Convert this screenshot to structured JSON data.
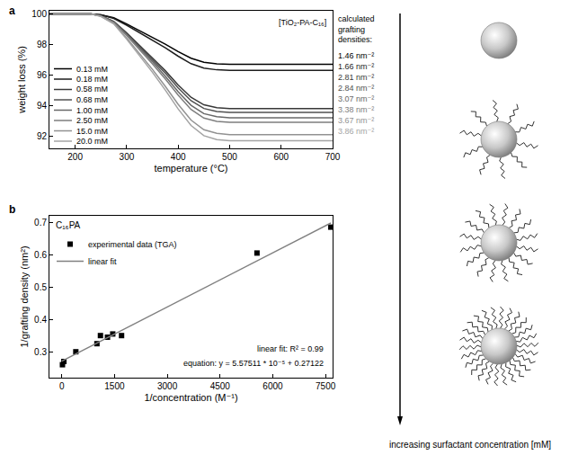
{
  "chart_data": [
    {
      "type": "line",
      "panel_label": "a",
      "inset_label": "[TiO₂-PA-C₁₆]",
      "side_heading": "calculated grafting densities:",
      "x_label": "temperature (°C)",
      "y_label": "weight loss (%)",
      "xlim": [
        150,
        700
      ],
      "xticks": [
        200,
        300,
        400,
        500,
        600,
        700
      ],
      "ylim": [
        91.2,
        100.2
      ],
      "yticks": [
        92,
        94,
        96,
        98,
        100
      ],
      "grid": false,
      "legend": "lower left",
      "x": [
        150,
        200,
        230,
        250,
        275,
        300,
        325,
        350,
        375,
        400,
        425,
        450,
        475,
        500,
        550,
        600,
        650,
        700
      ],
      "series": [
        {
          "name": "0.13 mM",
          "color": "#000000",
          "end_label": "1.46 nm⁻²",
          "values": [
            100,
            100,
            100,
            99.93,
            99.74,
            99.34,
            98.91,
            98.48,
            98.02,
            97.53,
            97.1,
            96.83,
            96.73,
            96.7,
            96.7,
            96.7,
            96.7,
            96.7
          ]
        },
        {
          "name": "0.18 mM",
          "color": "#1e1e1e",
          "end_label": "1.66 nm⁻²",
          "values": [
            100,
            100,
            100,
            99.93,
            99.7,
            99.26,
            98.78,
            98.3,
            97.78,
            97.23,
            96.74,
            96.45,
            96.34,
            96.3,
            96.3,
            96.3,
            96.3,
            96.3
          ]
        },
        {
          "name": "0.58 mM",
          "color": "#383838",
          "end_label": "2.81 nm⁻²",
          "values": [
            100,
            100,
            100,
            99.88,
            99.5,
            98.76,
            97.95,
            97.15,
            96.28,
            95.35,
            94.54,
            94.05,
            93.86,
            93.8,
            93.8,
            93.8,
            93.8,
            93.8
          ]
        },
        {
          "name": "0.68 mM",
          "color": "#505050",
          "end_label": "2.84 nm⁻²",
          "values": [
            100,
            100,
            100,
            99.87,
            99.48,
            98.71,
            97.87,
            97.03,
            96.13,
            95.16,
            94.32,
            93.81,
            93.61,
            93.55,
            93.55,
            93.55,
            93.55,
            93.55
          ]
        },
        {
          "name": "1.00 mM",
          "color": "#686868",
          "end_label": "3.07 nm⁻²",
          "values": [
            100,
            100,
            100,
            99.86,
            99.46,
            98.64,
            97.76,
            96.87,
            95.92,
            94.9,
            94.02,
            93.47,
            93.27,
            93.2,
            93.2,
            93.2,
            93.2,
            93.2
          ]
        },
        {
          "name": "2.50 mM",
          "color": "#7e7e7e",
          "end_label": "3.38 nm⁻²",
          "values": [
            100,
            100,
            100,
            99.86,
            99.43,
            98.58,
            97.66,
            96.73,
            95.74,
            94.68,
            93.75,
            93.18,
            92.97,
            92.9,
            92.9,
            92.9,
            92.9,
            92.9
          ]
        },
        {
          "name": "15.0 mM",
          "color": "#929292",
          "end_label": "3.67 nm⁻²",
          "values": [
            100,
            100,
            100,
            99.84,
            99.37,
            98.42,
            97.39,
            96.37,
            95.26,
            94.08,
            93.05,
            92.42,
            92.18,
            92.1,
            92.1,
            92.1,
            92.1,
            92.1
          ]
        },
        {
          "name": "20.0 mM",
          "color": "#a4a4a4",
          "end_label": "3.86 nm⁻²",
          "values": [
            100,
            100,
            100,
            99.83,
            99.34,
            98.34,
            97.26,
            96.18,
            95.02,
            93.78,
            92.7,
            92.03,
            91.78,
            91.7,
            91.7,
            91.7,
            91.7,
            91.7
          ]
        }
      ]
    },
    {
      "type": "scatter",
      "panel_label": "b",
      "inset_label": "C₁₆PA",
      "fit_annotations": [
        "linear fit: R² = 0.99",
        "equation: y = 5.57511 * 10⁻⁵ + 0.27122"
      ],
      "x_label": "1/concentration (M⁻¹)",
      "y_label": "1/grafting density (nm²)",
      "xlim": [
        -350,
        7700
      ],
      "xticks": [
        0,
        1500,
        3000,
        4500,
        6000,
        7500
      ],
      "ylim": [
        0.22,
        0.72
      ],
      "yticks": [
        0.3,
        0.4,
        0.5,
        0.6,
        0.7
      ],
      "grid": false,
      "legend": "upper left",
      "series": [
        {
          "name": "experimental data (TGA)",
          "type": "scatter",
          "marker": "square",
          "color": "#000000",
          "x": [
            20,
            60,
            400,
            1000,
            1100,
            1300,
            1450,
            1700,
            5550,
            7650
          ],
          "values": [
            0.26,
            0.27,
            0.3,
            0.325,
            0.35,
            0.345,
            0.355,
            0.35,
            0.605,
            0.685
          ]
        },
        {
          "name": "linear fit",
          "type": "line",
          "line_style": "solid",
          "color": "#808080",
          "x": [
            0,
            7650
          ],
          "values": [
            0.27122,
            0.69772
          ]
        }
      ]
    }
  ],
  "diagram": {
    "caption": "increasing surfactant concentration [mM]"
  }
}
